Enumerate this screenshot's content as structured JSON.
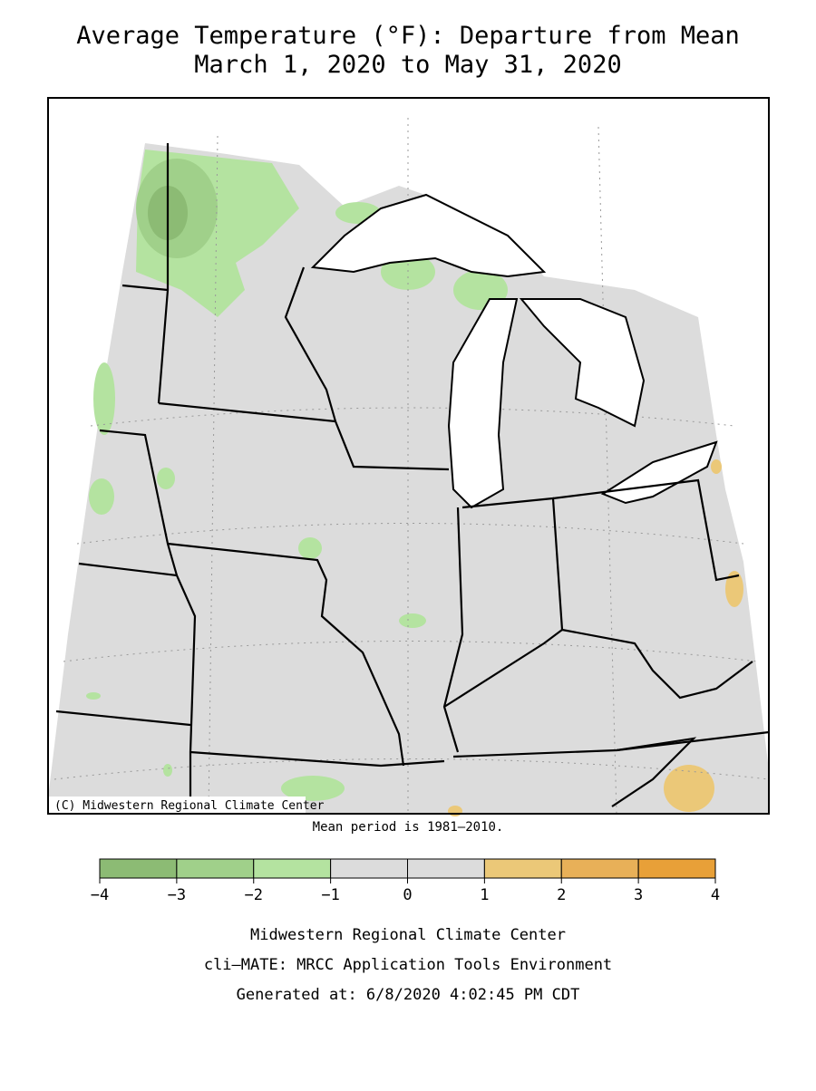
{
  "header": {
    "title": [
      "Average Temperature (°F): Departure from Mean",
      "March 1, 2020 to May 31, 2020"
    ]
  },
  "map": {
    "copyright": "(C) Midwestern Regional Climate Center",
    "note": "Mean period is 1981–2010."
  },
  "legend": {
    "ticks": [
      {
        "value": -4,
        "label": "−4"
      },
      {
        "value": -3,
        "label": "−3"
      },
      {
        "value": -2,
        "label": "−2"
      },
      {
        "value": -1,
        "label": "−1"
      },
      0,
      1,
      2,
      3,
      4
    ],
    "colors": [
      "#8cbb74",
      "#a0d08a",
      "#b4e3a0",
      "#dcdcdc",
      "#dcdcdc",
      "#ebc878",
      "#e8b058",
      "#e8a038"
    ]
  },
  "footer": [
    "Midwestern Regional Climate Center",
    "cli–MATE: MRCC Application Tools Environment",
    "Generated at: 6/8/2020 4:02:45 PM CDT"
  ]
}
